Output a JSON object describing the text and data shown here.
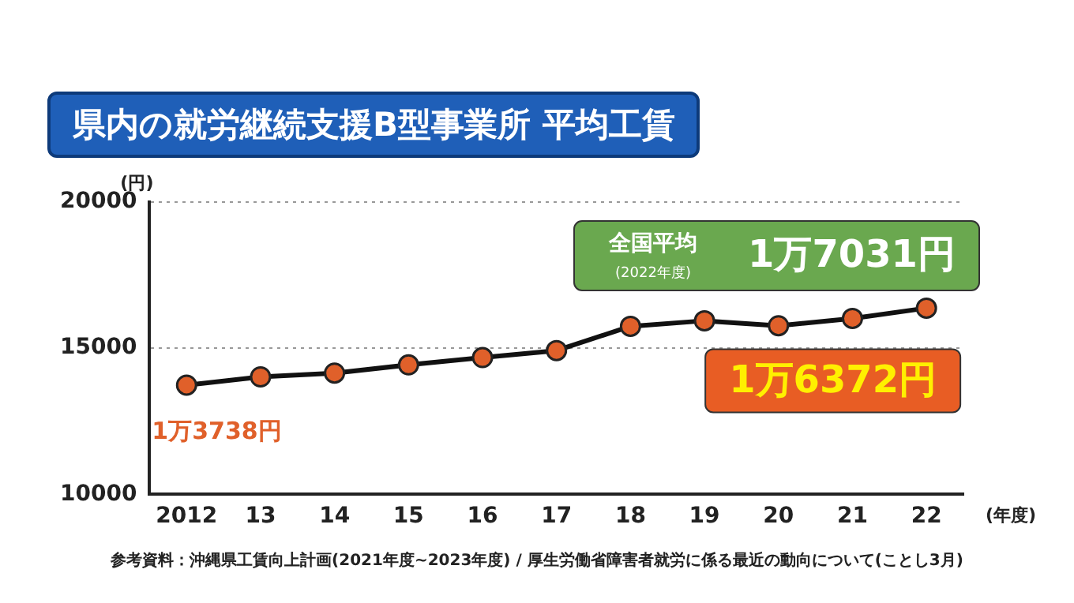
{
  "chart_data": {
    "type": "line",
    "title": "県内の就労継続支援B型事業所 平均工賃",
    "xlabel": "(年度)",
    "ylabel": "(円)",
    "categories": [
      "2012",
      "13",
      "14",
      "15",
      "16",
      "17",
      "18",
      "19",
      "20",
      "21",
      "22"
    ],
    "series": [
      {
        "color": "#e0602a",
        "values": [
          13738,
          14020,
          14150,
          14430,
          14680,
          14920,
          15750,
          15940,
          15770,
          16020,
          16372
        ]
      }
    ],
    "ylim": [
      10000,
      20000
    ],
    "yticks": [
      10000,
      15000,
      20000
    ],
    "grid": "y",
    "legend": false,
    "marker": "circle",
    "line_style": "solid",
    "annotations": [
      {
        "text": "1万3738円",
        "x": "2012",
        "y": 13738
      },
      {
        "text": "1万6372円",
        "x": "22",
        "y": 16372
      },
      "全国平均",
      "(2022年度)",
      "1万7031円",
      "参考資料：沖縄県工賃向上計画(2021年度~2023年度) / 厚生労働省障害者就労に係る最近の動向について(ことし3月)"
    ]
  }
}
